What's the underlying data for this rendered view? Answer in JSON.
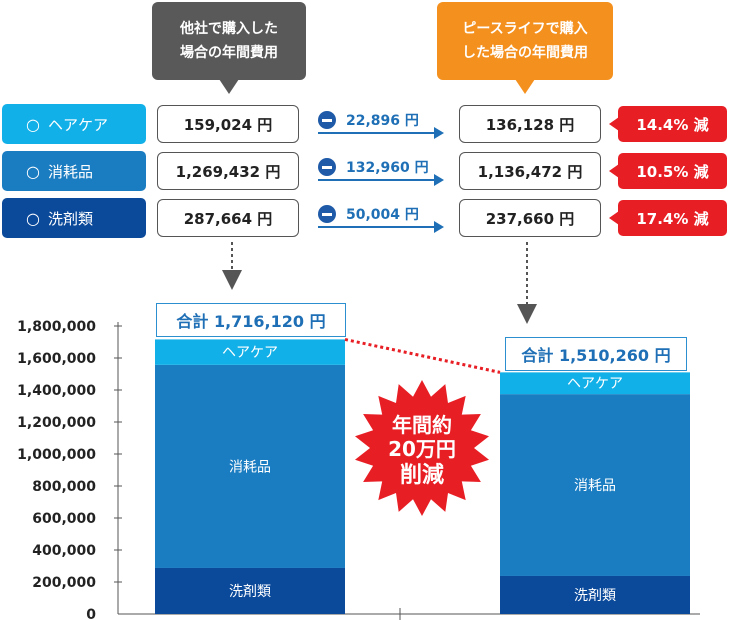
{
  "header": {
    "other_company_lines": [
      "他社で購入した",
      "場合の年間費用"
    ],
    "peace_life_lines": [
      "ピースライフで購入",
      "した場合の年間費用"
    ]
  },
  "rows": [
    {
      "label": "ヘアケア",
      "mark": "○",
      "color": "#12b0e8",
      "other": "159,024 円",
      "diff": "22,896 円",
      "peace": "136,128 円",
      "reduction": "14.4% 減"
    },
    {
      "label": "消耗品",
      "mark": "○",
      "color": "#1a7cc1",
      "other": "1,269,432 円",
      "diff": "132,960 円",
      "peace": "1,136,472 円",
      "reduction": "10.5% 減"
    },
    {
      "label": "洗剤類",
      "mark": "○",
      "color": "#0b4a9b",
      "other": "287,664 円",
      "diff": "50,004 円",
      "peace": "237,660 円",
      "reduction": "17.4% 減"
    }
  ],
  "totals": {
    "other": "合計 1,716,120 円",
    "peace": "合計 1,510,260 円"
  },
  "badge": {
    "lines": [
      "年間約",
      "20万円",
      "削減"
    ],
    "color": "#e81e25"
  },
  "colors": {
    "haircare": "#12b0e8",
    "consumables": "#1a7cc1",
    "detergent": "#0b4a9b",
    "accent_red": "#e81e25"
  },
  "chart_data": {
    "type": "bar",
    "stacked": true,
    "categories": [
      "他社で購入した場合",
      "ピースライフで購入した場合"
    ],
    "series": [
      {
        "name": "洗剤類",
        "values": [
          287664,
          237660
        ],
        "color": "#0b4a9b"
      },
      {
        "name": "消耗品",
        "values": [
          1269432,
          1136472
        ],
        "color": "#1a7cc1"
      },
      {
        "name": "ヘアケア",
        "values": [
          159024,
          136128
        ],
        "color": "#12b0e8"
      }
    ],
    "totals": [
      1716120,
      1510260
    ],
    "ylim": [
      0,
      1800000
    ],
    "yticks": [
      0,
      200000,
      400000,
      600000,
      800000,
      1000000,
      1200000,
      1400000,
      1600000,
      1800000
    ],
    "ytick_labels": [
      "0",
      "200,000",
      "400,000",
      "600,000",
      "800,000",
      "1,000,000",
      "1,200,000",
      "1,400,000",
      "1,600,000",
      "1,800,000"
    ]
  }
}
